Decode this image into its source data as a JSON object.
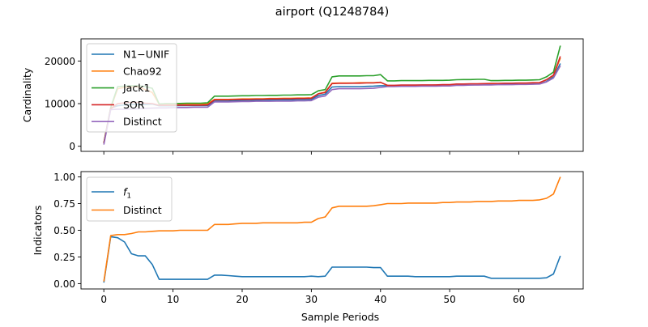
{
  "figure": {
    "title": "airport (Q1248784)"
  },
  "chart_data": [
    {
      "type": "line",
      "xlabel": "",
      "ylabel": "Cardinality",
      "xlim": [
        -3.3,
        69.3
      ],
      "ylim": [
        -1200,
        25200
      ],
      "xticks": [
        0,
        10,
        20,
        30,
        40,
        50,
        60
      ],
      "yticks": [
        0,
        10000,
        20000
      ],
      "ytick_labels": [
        "0",
        "10000",
        "20000"
      ],
      "show_xtick_labels": false,
      "legend_position": "upper-left",
      "grid": false,
      "x": [
        0,
        1,
        2,
        3,
        4,
        5,
        6,
        7,
        8,
        9,
        10,
        11,
        12,
        13,
        14,
        15,
        16,
        17,
        18,
        19,
        20,
        21,
        22,
        23,
        24,
        25,
        26,
        27,
        28,
        29,
        30,
        31,
        32,
        33,
        34,
        35,
        36,
        37,
        38,
        39,
        40,
        41,
        42,
        43,
        44,
        45,
        46,
        47,
        48,
        49,
        50,
        51,
        52,
        53,
        54,
        55,
        56,
        57,
        58,
        59,
        60,
        61,
        62,
        63,
        64,
        65,
        66
      ],
      "series": [
        {
          "name": "N1−UNIF",
          "color": "#1f77b4",
          "values": [
            700,
            9000,
            9500,
            9700,
            9800,
            9800,
            9800,
            9900,
            9500,
            9500,
            9500,
            9550,
            9550,
            9550,
            9550,
            9550,
            10600,
            10600,
            10600,
            10700,
            10750,
            10800,
            10800,
            10850,
            10850,
            10900,
            10900,
            10900,
            10950,
            10950,
            11000,
            11900,
            12200,
            13900,
            14000,
            14000,
            14000,
            14000,
            14050,
            14100,
            14200,
            14200,
            14200,
            14200,
            14250,
            14250,
            14250,
            14250,
            14300,
            14300,
            14300,
            14400,
            14400,
            14400,
            14450,
            14450,
            14500,
            14500,
            14500,
            14550,
            14550,
            14600,
            14600,
            14650,
            15200,
            16300,
            19400
          ]
        },
        {
          "name": "Chao92",
          "color": "#ff7f0e",
          "values": [
            800,
            9000,
            13500,
            13800,
            13900,
            13950,
            13300,
            12600,
            9900,
            9900,
            9900,
            9950,
            9950,
            9950,
            9950,
            9950,
            11000,
            11000,
            11000,
            11050,
            11100,
            11100,
            11150,
            11150,
            11200,
            11200,
            11250,
            11250,
            11300,
            11300,
            11350,
            12300,
            12700,
            14800,
            14850,
            14850,
            14850,
            14900,
            14900,
            14900,
            15000,
            14250,
            14250,
            14250,
            14300,
            14300,
            14300,
            14300,
            14350,
            14350,
            14400,
            14550,
            14550,
            14600,
            14600,
            14650,
            14700,
            14700,
            14750,
            14750,
            14800,
            14800,
            14850,
            14900,
            15600,
            16600,
            20700
          ]
        },
        {
          "name": "Jack1",
          "color": "#2ca02c",
          "values": [
            800,
            9100,
            14000,
            14100,
            14200,
            14200,
            14000,
            13600,
            9900,
            10000,
            10000,
            10050,
            10100,
            10100,
            10100,
            10200,
            11750,
            11750,
            11750,
            11800,
            11850,
            11850,
            11900,
            11900,
            11950,
            11950,
            12000,
            12000,
            12050,
            12050,
            12100,
            13000,
            13300,
            16300,
            16500,
            16500,
            16500,
            16500,
            16550,
            16550,
            16800,
            15350,
            15350,
            15400,
            15400,
            15400,
            15400,
            15450,
            15450,
            15450,
            15500,
            15600,
            15650,
            15650,
            15700,
            15700,
            15400,
            15400,
            15450,
            15450,
            15500,
            15500,
            15550,
            15600,
            16300,
            17400,
            23600
          ]
        },
        {
          "name": "SOR",
          "color": "#d62728",
          "values": [
            700,
            8800,
            10000,
            10200,
            10300,
            10300,
            10100,
            10000,
            9600,
            9600,
            9600,
            9650,
            9650,
            9650,
            9650,
            9700,
            10900,
            10900,
            10900,
            10950,
            11000,
            11000,
            11050,
            11050,
            11100,
            11100,
            11150,
            11150,
            11200,
            11200,
            11250,
            12300,
            12600,
            14700,
            14750,
            14750,
            14800,
            14800,
            14850,
            14850,
            15000,
            14300,
            14300,
            14350,
            14350,
            14350,
            14400,
            14400,
            14400,
            14450,
            14450,
            14600,
            14600,
            14650,
            14650,
            14700,
            14750,
            14750,
            14800,
            14800,
            14850,
            14850,
            14900,
            14950,
            15600,
            16700,
            21100
          ]
        },
        {
          "name": "Distinct",
          "color": "#9467bd",
          "values": [
            400,
            8600,
            8700,
            8700,
            8750,
            8800,
            8900,
            8950,
            9000,
            9000,
            9050,
            9100,
            9100,
            9150,
            9150,
            9150,
            10400,
            10400,
            10400,
            10450,
            10500,
            10500,
            10550,
            10550,
            10550,
            10600,
            10600,
            10600,
            10650,
            10650,
            10700,
            11500,
            11800,
            13300,
            13500,
            13500,
            13500,
            13500,
            13550,
            13600,
            13800,
            14000,
            14000,
            14050,
            14050,
            14050,
            14100,
            14100,
            14100,
            14150,
            14150,
            14300,
            14300,
            14350,
            14350,
            14400,
            14400,
            14450,
            14450,
            14450,
            14500,
            14500,
            14550,
            14600,
            15100,
            16000,
            18900
          ]
        }
      ]
    },
    {
      "type": "line",
      "xlabel": "Sample Periods",
      "ylabel": "Indicators",
      "xlim": [
        -3.3,
        69.3
      ],
      "ylim": [
        -0.05,
        1.05
      ],
      "xticks": [
        0,
        10,
        20,
        30,
        40,
        50,
        60
      ],
      "xtick_labels": [
        "0",
        "10",
        "20",
        "30",
        "40",
        "50",
        "60"
      ],
      "yticks": [
        0,
        0.25,
        0.5,
        0.75,
        1.0
      ],
      "ytick_labels": [
        "0.00",
        "0.25",
        "0.50",
        "0.75",
        "1.00"
      ],
      "legend_position": "upper-left",
      "grid": false,
      "x": [
        0,
        1,
        2,
        3,
        4,
        5,
        6,
        7,
        8,
        9,
        10,
        11,
        12,
        13,
        14,
        15,
        16,
        17,
        18,
        19,
        20,
        21,
        22,
        23,
        24,
        25,
        26,
        27,
        28,
        29,
        30,
        31,
        32,
        33,
        34,
        35,
        36,
        37,
        38,
        39,
        40,
        41,
        42,
        43,
        44,
        45,
        46,
        47,
        48,
        49,
        50,
        51,
        52,
        53,
        54,
        55,
        56,
        57,
        58,
        59,
        60,
        61,
        62,
        63,
        64,
        65,
        66
      ],
      "series": [
        {
          "name": "f1",
          "color": "#1f77b4",
          "values": [
            0.01,
            0.44,
            0.43,
            0.39,
            0.28,
            0.26,
            0.26,
            0.18,
            0.04,
            0.04,
            0.04,
            0.04,
            0.04,
            0.04,
            0.04,
            0.04,
            0.08,
            0.08,
            0.075,
            0.07,
            0.065,
            0.065,
            0.065,
            0.065,
            0.065,
            0.065,
            0.065,
            0.065,
            0.065,
            0.065,
            0.07,
            0.065,
            0.07,
            0.155,
            0.155,
            0.155,
            0.155,
            0.155,
            0.155,
            0.15,
            0.15,
            0.07,
            0.07,
            0.07,
            0.07,
            0.065,
            0.065,
            0.065,
            0.065,
            0.065,
            0.065,
            0.07,
            0.07,
            0.07,
            0.07,
            0.07,
            0.05,
            0.05,
            0.05,
            0.05,
            0.05,
            0.05,
            0.05,
            0.05,
            0.055,
            0.09,
            0.26
          ]
        },
        {
          "name": "Distinct",
          "color": "#ff7f0e",
          "values": [
            0.02,
            0.45,
            0.46,
            0.46,
            0.47,
            0.485,
            0.485,
            0.49,
            0.495,
            0.495,
            0.495,
            0.5,
            0.5,
            0.5,
            0.5,
            0.5,
            0.555,
            0.555,
            0.555,
            0.56,
            0.565,
            0.565,
            0.565,
            0.57,
            0.57,
            0.57,
            0.57,
            0.57,
            0.57,
            0.575,
            0.575,
            0.61,
            0.625,
            0.71,
            0.725,
            0.725,
            0.725,
            0.725,
            0.725,
            0.73,
            0.74,
            0.75,
            0.75,
            0.75,
            0.755,
            0.755,
            0.755,
            0.755,
            0.755,
            0.76,
            0.76,
            0.765,
            0.765,
            0.765,
            0.77,
            0.77,
            0.77,
            0.775,
            0.775,
            0.775,
            0.78,
            0.78,
            0.78,
            0.785,
            0.8,
            0.84,
            1.0
          ]
        }
      ]
    }
  ]
}
